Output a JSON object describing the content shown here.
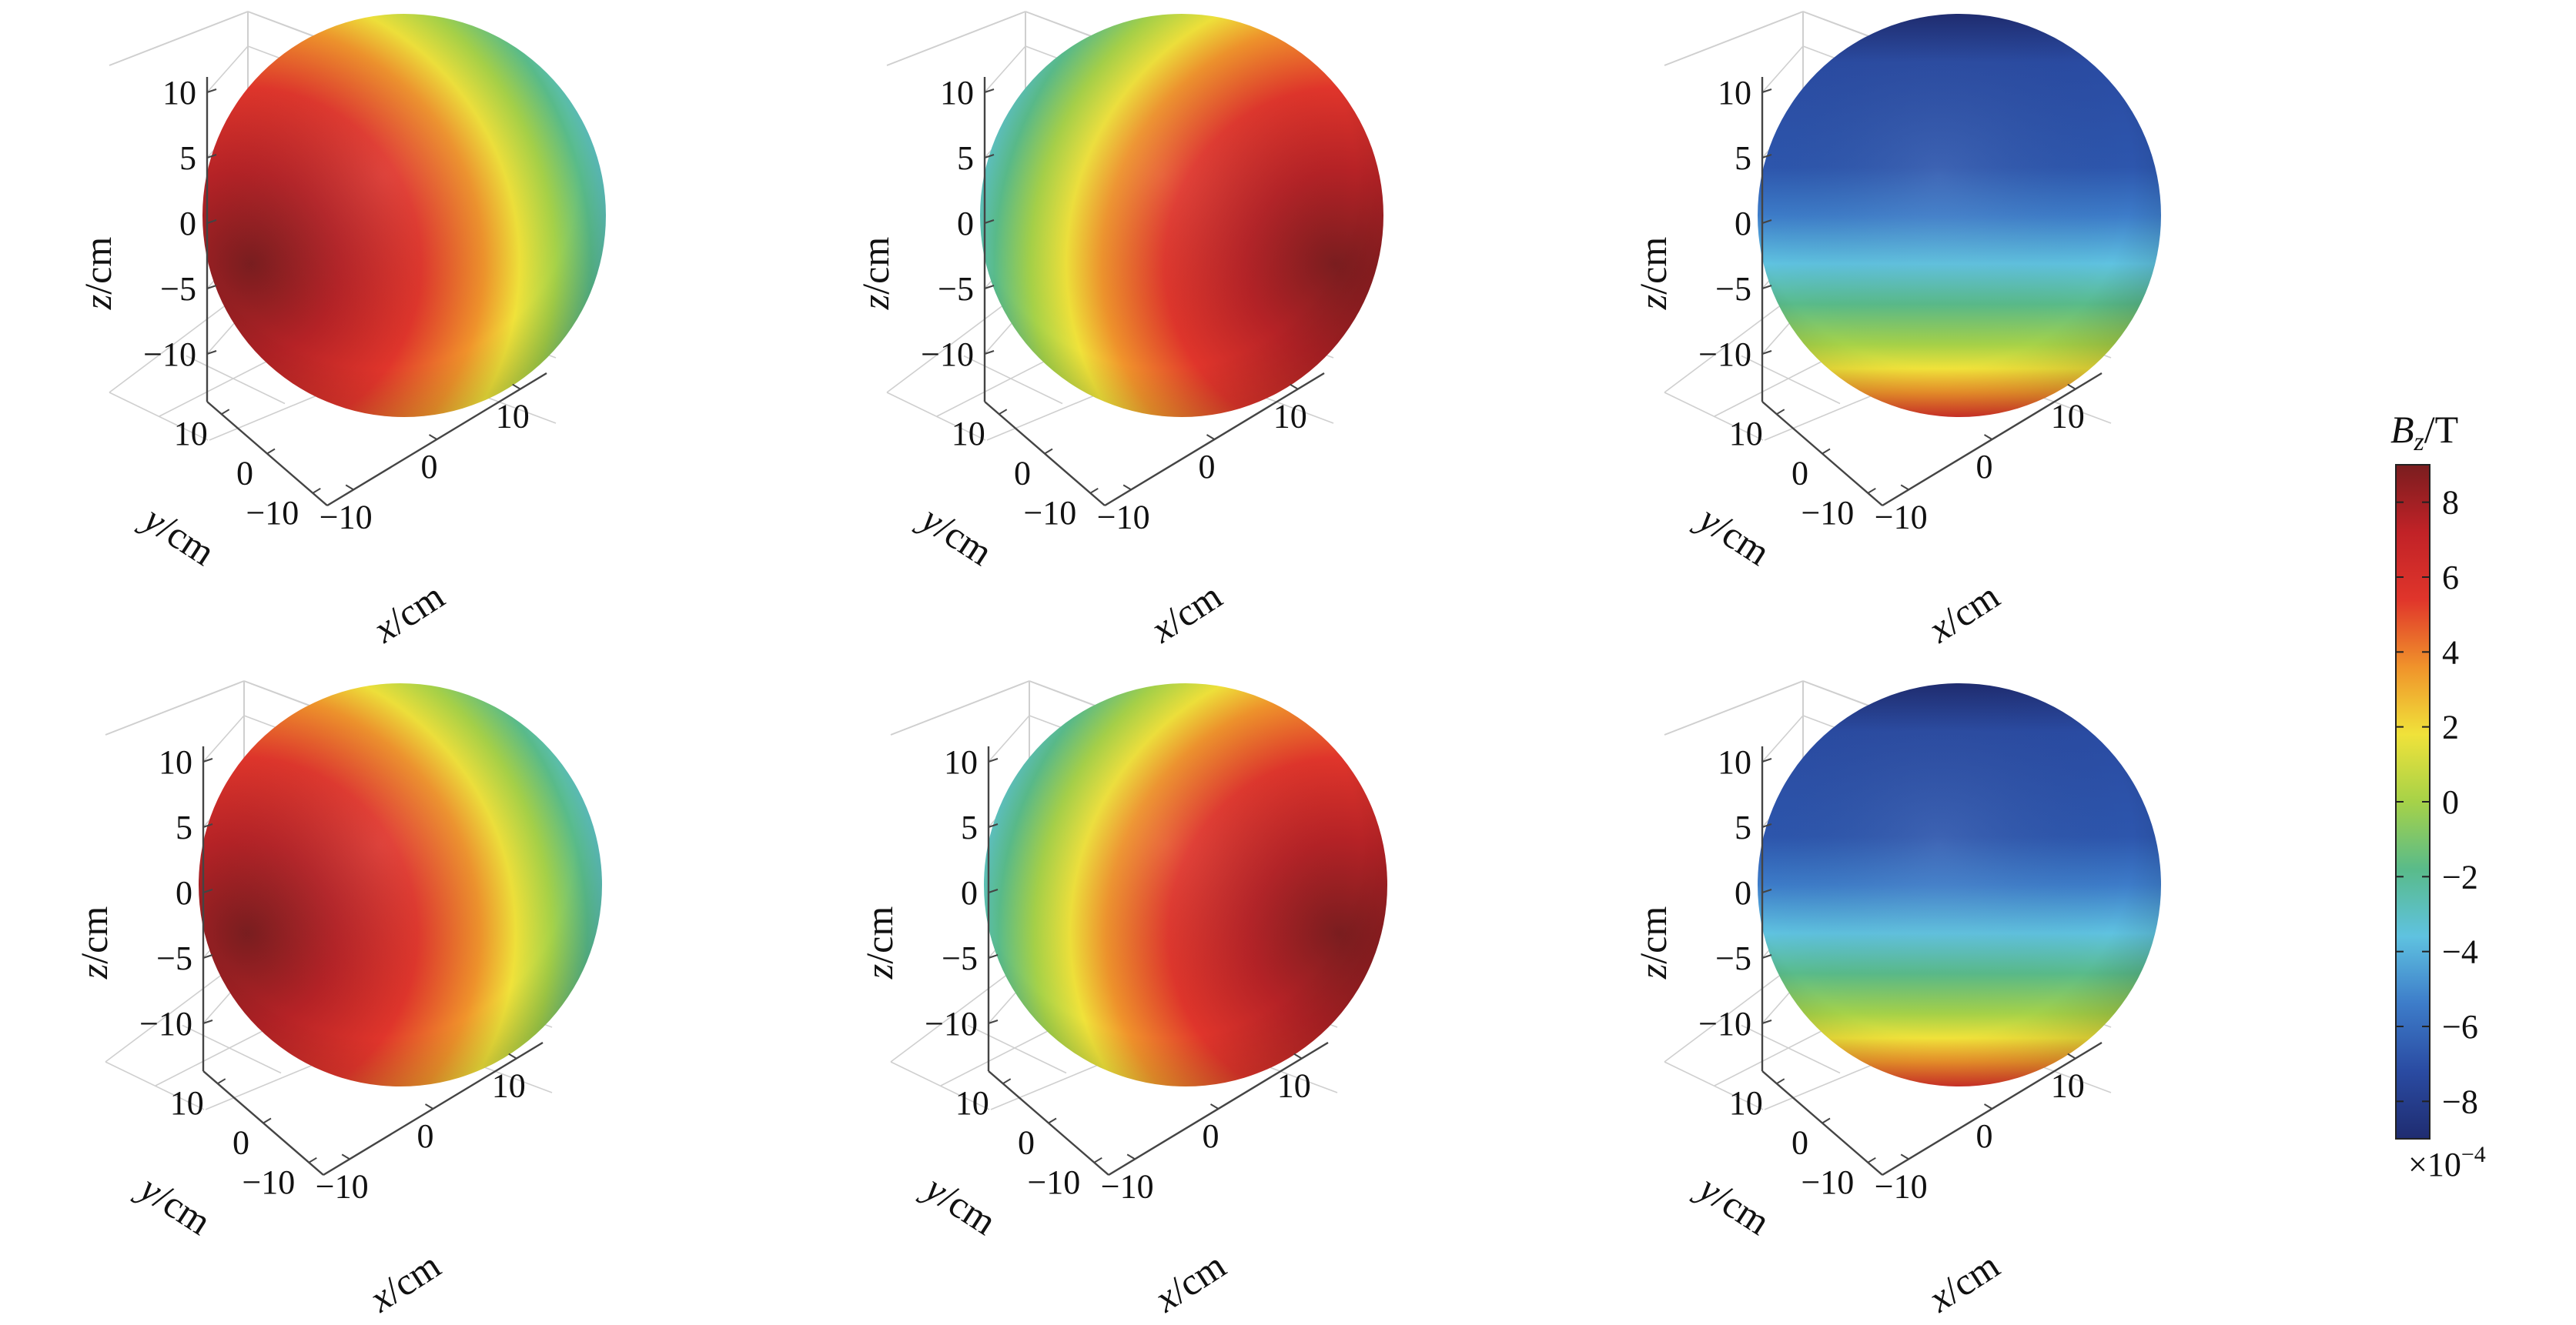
{
  "chart_data": {
    "type": "surface3d",
    "title": "",
    "panels": [
      {
        "id": "row1-col1",
        "xlabel_var": "x",
        "ylabel_var": "y",
        "zlabel_var": "z",
        "unit": "cm",
        "pattern": "tilted-left",
        "max_at": "lower-left"
      },
      {
        "id": "row1-col2",
        "xlabel_var": "x",
        "ylabel_var": "y",
        "zlabel_var": "z",
        "unit": "cm",
        "pattern": "tilted-right",
        "max_at": "lower-right"
      },
      {
        "id": "row1-col3",
        "xlabel_var": "x",
        "ylabel_var": "y",
        "zlabel_var": "z",
        "unit": "cm",
        "pattern": "horizontal-bands",
        "max_at": "bottom"
      },
      {
        "id": "row2-col1",
        "xlabel_var": "x",
        "ylabel_var": "y",
        "zlabel_var": "z",
        "unit": "cm",
        "pattern": "tilted-left",
        "max_at": "lower-left"
      },
      {
        "id": "row2-col2",
        "xlabel_var": "x",
        "ylabel_var": "y",
        "zlabel_var": "z",
        "unit": "cm",
        "pattern": "tilted-right",
        "max_at": "lower-right"
      },
      {
        "id": "row2-col3",
        "xlabel_var": "x",
        "ylabel_var": "y",
        "zlabel_var": "z",
        "unit": "cm",
        "pattern": "horizontal-bands",
        "max_at": "bottom"
      }
    ],
    "axis_ticks": {
      "z": [
        "10",
        "5",
        "0",
        "−5",
        "−10"
      ],
      "y": [
        "10",
        "0",
        "−10"
      ],
      "x": [
        "−10",
        "0",
        "10"
      ]
    },
    "sphere_radius_cm": 10,
    "colorbar": {
      "label_var": "B",
      "label_sub": "z",
      "label_unit": "/T",
      "ticks": [
        "8",
        "6",
        "4",
        "2",
        "0",
        "−2",
        "−4",
        "−6",
        "−8"
      ],
      "tick_values": [
        8,
        6,
        4,
        2,
        0,
        -2,
        -4,
        -6,
        -8
      ],
      "range": [
        -9,
        9
      ],
      "multiplier": "×10",
      "multiplier_exp": "−4",
      "colormap": "jet",
      "colors": [
        "#1f2c70",
        "#2a4ba2",
        "#3d7cc9",
        "#5fc2e0",
        "#59bb8a",
        "#a6d248",
        "#f0e23a",
        "#f0932b",
        "#e0352b",
        "#c12227",
        "#7a1d1f"
      ]
    }
  }
}
